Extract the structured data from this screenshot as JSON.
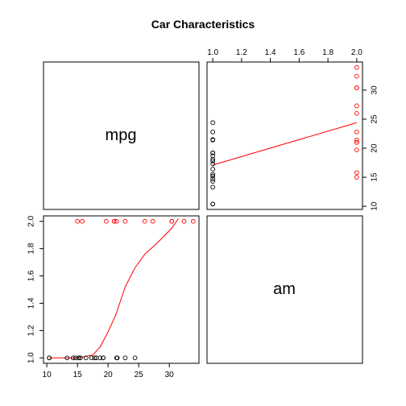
{
  "chart_data": {
    "type": "scatter",
    "title": "Car Characteristics",
    "variables": [
      "mpg",
      "am"
    ],
    "colors": {
      "am_1": "#000000",
      "am_2": "#ff0000",
      "smooth": "#ff0000"
    },
    "mpg_ticks": [
      10,
      15,
      20,
      25,
      30
    ],
    "am_ticks": [
      1.0,
      1.2,
      1.4,
      1.6,
      1.8,
      2.0
    ],
    "mpg_range": [
      10.4,
      33.9
    ],
    "am_range": [
      1.0,
      2.0
    ],
    "points": [
      {
        "mpg": 21.0,
        "am": 2
      },
      {
        "mpg": 21.0,
        "am": 2
      },
      {
        "mpg": 22.8,
        "am": 2
      },
      {
        "mpg": 21.4,
        "am": 1
      },
      {
        "mpg": 18.7,
        "am": 1
      },
      {
        "mpg": 18.1,
        "am": 1
      },
      {
        "mpg": 14.3,
        "am": 1
      },
      {
        "mpg": 24.4,
        "am": 1
      },
      {
        "mpg": 22.8,
        "am": 1
      },
      {
        "mpg": 19.2,
        "am": 1
      },
      {
        "mpg": 17.8,
        "am": 1
      },
      {
        "mpg": 16.4,
        "am": 1
      },
      {
        "mpg": 17.3,
        "am": 1
      },
      {
        "mpg": 15.2,
        "am": 1
      },
      {
        "mpg": 10.4,
        "am": 1
      },
      {
        "mpg": 10.4,
        "am": 1
      },
      {
        "mpg": 14.7,
        "am": 1
      },
      {
        "mpg": 32.4,
        "am": 2
      },
      {
        "mpg": 30.4,
        "am": 2
      },
      {
        "mpg": 33.9,
        "am": 2
      },
      {
        "mpg": 21.5,
        "am": 1
      },
      {
        "mpg": 15.5,
        "am": 1
      },
      {
        "mpg": 15.2,
        "am": 1
      },
      {
        "mpg": 13.3,
        "am": 1
      },
      {
        "mpg": 19.2,
        "am": 1
      },
      {
        "mpg": 27.3,
        "am": 2
      },
      {
        "mpg": 26.0,
        "am": 2
      },
      {
        "mpg": 30.4,
        "am": 2
      },
      {
        "mpg": 15.8,
        "am": 2
      },
      {
        "mpg": 19.7,
        "am": 2
      },
      {
        "mpg": 15.0,
        "am": 2
      },
      {
        "mpg": 21.4,
        "am": 2
      }
    ],
    "smooth_am_vs_mpg": [
      {
        "mpg": 10.4,
        "am": 1.0
      },
      {
        "mpg": 15.0,
        "am": 1.0
      },
      {
        "mpg": 17.5,
        "am": 1.02
      },
      {
        "mpg": 18.7,
        "am": 1.08
      },
      {
        "mpg": 20.0,
        "am": 1.19
      },
      {
        "mpg": 21.3,
        "am": 1.32
      },
      {
        "mpg": 22.8,
        "am": 1.52
      },
      {
        "mpg": 24.4,
        "am": 1.66
      },
      {
        "mpg": 26.0,
        "am": 1.76
      },
      {
        "mpg": 28.0,
        "am": 1.84
      },
      {
        "mpg": 30.4,
        "am": 1.95
      },
      {
        "mpg": 31.5,
        "am": 2.02
      }
    ],
    "smooth_mpg_vs_am": [
      {
        "am": 1.0,
        "mpg": 17.1
      },
      {
        "am": 2.0,
        "mpg": 24.4
      }
    ]
  }
}
